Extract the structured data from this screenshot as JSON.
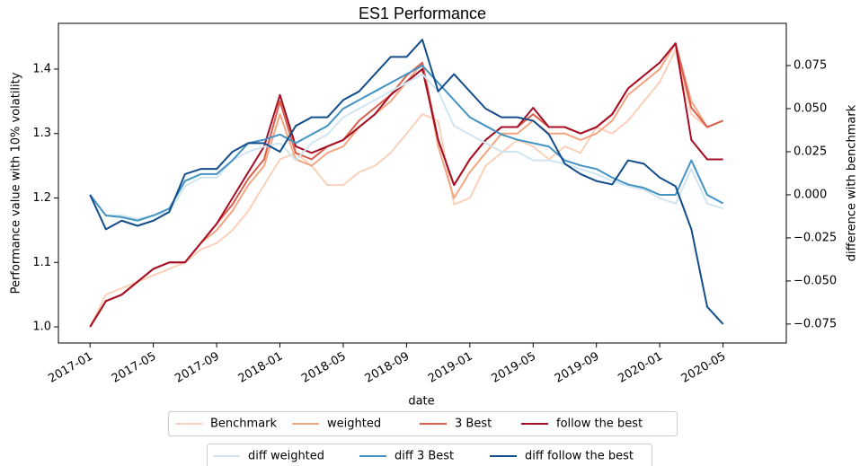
{
  "chart_data": {
    "type": "line",
    "title": "ES1 Performance",
    "x_label": "date",
    "y_label": "Performance value with 10% volatility",
    "y2_label": "difference with benchmark",
    "x": [
      "2017-01",
      "2017-02",
      "2017-03",
      "2017-04",
      "2017-05",
      "2017-06",
      "2017-07",
      "2017-08",
      "2017-09",
      "2017-10",
      "2017-11",
      "2017-12",
      "2018-01",
      "2018-02",
      "2018-03",
      "2018-04",
      "2018-05",
      "2018-06",
      "2018-07",
      "2018-08",
      "2018-09",
      "2018-10",
      "2018-11",
      "2018-12",
      "2019-01",
      "2019-02",
      "2019-03",
      "2019-04",
      "2019-05",
      "2019-06",
      "2019-07",
      "2019-08",
      "2019-09",
      "2019-10",
      "2019-11",
      "2019-12",
      "2020-01",
      "2020-02",
      "2020-03",
      "2020-04",
      "2020-05"
    ],
    "xlim": [
      "2016-11",
      "2020-09"
    ],
    "xticks": [
      "2017-01",
      "2017-05",
      "2017-09",
      "2018-01",
      "2018-05",
      "2018-09",
      "2019-01",
      "2019-05",
      "2019-09",
      "2020-01",
      "2020-05"
    ],
    "ylim": [
      0.975,
      1.471
    ],
    "yticks": [
      {
        "value": 1.0,
        "label": "1.0"
      },
      1.1,
      1.2,
      1.3,
      1.4
    ],
    "y2lim": [
      -0.086,
      0.0995
    ],
    "y2ticks": [
      {
        "value": -0.075,
        "label": "−0.075"
      },
      {
        "value": -0.05,
        "label": "−0.050"
      },
      {
        "value": -0.025,
        "label": "−0.025"
      },
      {
        "value": 0,
        "label": "0.000"
      },
      0.025,
      {
        "value": 0.05,
        "label": "0.050"
      },
      0.075
    ],
    "series": [
      {
        "name": "Benchmark",
        "color": "#fbd0b9",
        "values": [
          1.0,
          1.05,
          1.06,
          1.07,
          1.08,
          1.09,
          1.1,
          1.12,
          1.13,
          1.15,
          1.18,
          1.22,
          1.26,
          1.27,
          1.25,
          1.22,
          1.22,
          1.24,
          1.25,
          1.27,
          1.3,
          1.33,
          1.32,
          1.19,
          1.2,
          1.25,
          1.27,
          1.29,
          1.28,
          1.26,
          1.28,
          1.27,
          1.31,
          1.3,
          1.32,
          1.35,
          1.38,
          1.43,
          1.33,
          1.31,
          1.32
        ]
      },
      {
        "name": "weighted",
        "color": "#f4a582",
        "values": [
          1.0,
          1.04,
          1.05,
          1.07,
          1.09,
          1.1,
          1.1,
          1.13,
          1.15,
          1.18,
          1.22,
          1.25,
          1.33,
          1.26,
          1.25,
          1.27,
          1.28,
          1.31,
          1.33,
          1.35,
          1.38,
          1.41,
          1.28,
          1.2,
          1.24,
          1.27,
          1.3,
          1.3,
          1.32,
          1.3,
          1.3,
          1.29,
          1.3,
          1.32,
          1.36,
          1.38,
          1.4,
          1.44,
          1.35,
          1.31,
          1.32
        ]
      },
      {
        "name": "3 Best",
        "color": "#d6604d",
        "values": [
          1.0,
          1.04,
          1.05,
          1.07,
          1.09,
          1.1,
          1.1,
          1.13,
          1.16,
          1.19,
          1.23,
          1.26,
          1.35,
          1.27,
          1.26,
          1.28,
          1.29,
          1.32,
          1.34,
          1.36,
          1.39,
          1.41,
          1.29,
          1.22,
          1.26,
          1.29,
          1.31,
          1.31,
          1.33,
          1.31,
          1.31,
          1.3,
          1.31,
          1.33,
          1.37,
          1.39,
          1.41,
          1.44,
          1.34,
          1.31,
          1.32
        ]
      },
      {
        "name": "follow the best",
        "color": "#a50f26",
        "values": [
          1.0,
          1.04,
          1.05,
          1.07,
          1.09,
          1.1,
          1.1,
          1.13,
          1.16,
          1.2,
          1.24,
          1.28,
          1.36,
          1.28,
          1.27,
          1.28,
          1.29,
          1.31,
          1.33,
          1.36,
          1.38,
          1.4,
          1.29,
          1.22,
          1.26,
          1.29,
          1.31,
          1.31,
          1.34,
          1.31,
          1.31,
          1.3,
          1.31,
          1.33,
          1.37,
          1.39,
          1.41,
          1.44,
          1.29,
          1.26,
          1.26
        ]
      },
      {
        "name": "diff weighted",
        "color": "#d1e5f0",
        "axis": "y2",
        "values": [
          0,
          -0.012,
          -0.012,
          -0.014,
          -0.012,
          -0.01,
          0.005,
          0.01,
          0.01,
          0.02,
          0.025,
          0.028,
          0.03,
          0.02,
          0.03,
          0.035,
          0.045,
          0.05,
          0.055,
          0.06,
          0.065,
          0.07,
          0.06,
          0.04,
          0.035,
          0.03,
          0.025,
          0.025,
          0.02,
          0.02,
          0.018,
          0.015,
          0.012,
          0.008,
          0.005,
          0.003,
          -0.002,
          -0.005,
          0.015,
          -0.005,
          -0.008
        ]
      },
      {
        "name": "diff 3 Best",
        "color": "#4393c3",
        "axis": "y2",
        "values": [
          0,
          -0.012,
          -0.013,
          -0.015,
          -0.012,
          -0.008,
          0.008,
          0.012,
          0.012,
          0.02,
          0.03,
          0.032,
          0.035,
          0.03,
          0.035,
          0.04,
          0.05,
          0.055,
          0.06,
          0.065,
          0.07,
          0.075,
          0.065,
          0.055,
          0.045,
          0.04,
          0.035,
          0.032,
          0.03,
          0.028,
          0.02,
          0.017,
          0.015,
          0.01,
          0.006,
          0.004,
          0.0,
          0.0,
          0.02,
          0.0,
          -0.005
        ]
      },
      {
        "name": "diff follow the best",
        "color": "#134d8b",
        "axis": "y2",
        "values": [
          0,
          -0.02,
          -0.015,
          -0.018,
          -0.015,
          -0.01,
          0.012,
          0.015,
          0.015,
          0.025,
          0.03,
          0.03,
          0.025,
          0.04,
          0.045,
          0.045,
          0.055,
          0.06,
          0.07,
          0.08,
          0.08,
          0.09,
          0.06,
          0.07,
          0.06,
          0.05,
          0.045,
          0.045,
          0.043,
          0.035,
          0.018,
          0.012,
          0.008,
          0.006,
          0.02,
          0.018,
          0.01,
          0.005,
          -0.02,
          -0.065,
          -0.075
        ]
      }
    ]
  }
}
